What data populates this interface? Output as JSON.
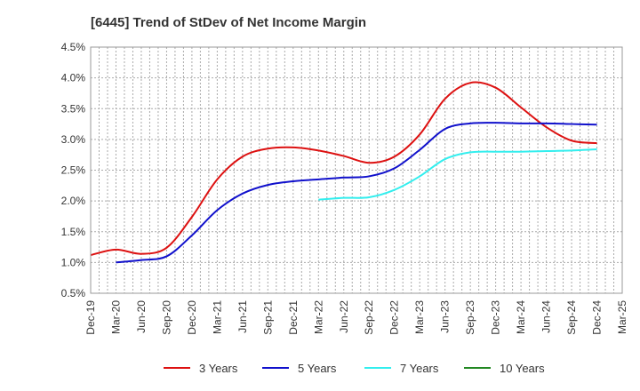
{
  "chart_data": {
    "type": "line",
    "title": "[6445]  Trend of StDev of Net Income Margin",
    "xlabel": "",
    "ylabel": "",
    "x": [
      "Dec-19",
      "Mar-20",
      "Jun-20",
      "Sep-20",
      "Dec-20",
      "Mar-21",
      "Jun-21",
      "Sep-21",
      "Dec-21",
      "Mar-22",
      "Jun-22",
      "Sep-22",
      "Dec-22",
      "Mar-23",
      "Jun-23",
      "Sep-23",
      "Dec-23",
      "Mar-24",
      "Jun-24",
      "Sep-24",
      "Dec-24",
      "Mar-25"
    ],
    "ylim": [
      0.5,
      4.5
    ],
    "yticks": [
      "0.5%",
      "1.0%",
      "1.5%",
      "2.0%",
      "2.5%",
      "3.0%",
      "3.5%",
      "4.0%",
      "4.5%"
    ],
    "ytick_values": [
      0.5,
      1.0,
      1.5,
      2.0,
      2.5,
      3.0,
      3.5,
      4.0,
      4.5
    ],
    "grid": true,
    "legend_position": "bottom",
    "series": [
      {
        "name": "3 Years",
        "color": "#dd1111",
        "values": [
          1.12,
          1.21,
          1.14,
          1.24,
          1.74,
          2.35,
          2.72,
          2.85,
          2.87,
          2.82,
          2.73,
          2.62,
          2.72,
          3.08,
          3.66,
          3.92,
          3.84,
          3.52,
          3.2,
          2.98,
          2.94,
          null
        ]
      },
      {
        "name": "5 Years",
        "color": "#1111cc",
        "values": [
          null,
          1.0,
          1.04,
          1.1,
          1.44,
          1.85,
          2.12,
          2.26,
          2.32,
          2.35,
          2.38,
          2.4,
          2.53,
          2.83,
          3.17,
          3.26,
          3.27,
          3.26,
          3.26,
          3.25,
          3.24,
          null
        ]
      },
      {
        "name": "7 Years",
        "color": "#33eeee",
        "values": [
          null,
          null,
          null,
          null,
          null,
          null,
          null,
          null,
          null,
          2.02,
          2.05,
          2.06,
          2.18,
          2.4,
          2.68,
          2.79,
          2.8,
          2.8,
          2.81,
          2.82,
          2.84,
          null
        ]
      },
      {
        "name": "10 Years",
        "color": "#228822",
        "values": [
          null,
          null,
          null,
          null,
          null,
          null,
          null,
          null,
          null,
          null,
          null,
          null,
          null,
          null,
          null,
          null,
          null,
          null,
          null,
          null,
          null,
          null
        ]
      }
    ]
  }
}
